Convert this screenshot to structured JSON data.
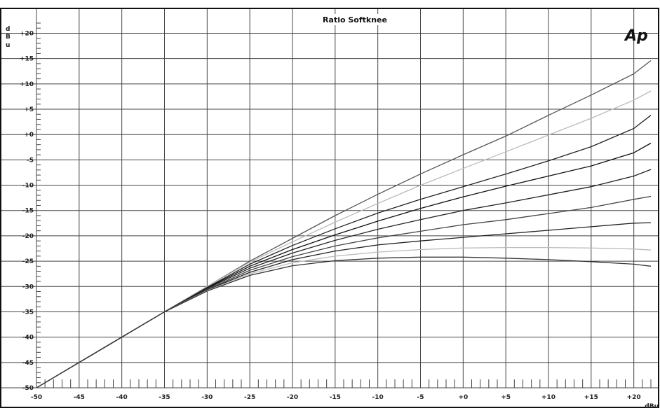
{
  "chart_data": {
    "type": "line",
    "title": "Ratio Softknee",
    "xlabel": "dBu",
    "ylabel": "dBu",
    "xlim": [
      -50,
      22
    ],
    "ylim": [
      -50,
      22
    ],
    "grid": true,
    "logo": "Ap",
    "xticks": [
      {
        "value": -50,
        "label": "-50"
      },
      {
        "value": -45,
        "label": "-45"
      },
      {
        "value": -40,
        "label": "-40"
      },
      {
        "value": -35,
        "label": "-35"
      },
      {
        "value": -30,
        "label": "-30"
      },
      {
        "value": -25,
        "label": "-25"
      },
      {
        "value": -20,
        "label": "-20"
      },
      {
        "value": -15,
        "label": "-15"
      },
      {
        "value": -10,
        "label": "-10"
      },
      {
        "value": -5,
        "label": "-5"
      },
      {
        "value": 0,
        "label": "+0"
      },
      {
        "value": 5,
        "label": "+5"
      },
      {
        "value": 10,
        "label": "+10"
      },
      {
        "value": 15,
        "label": "+15"
      },
      {
        "value": 20,
        "label": "+20"
      }
    ],
    "yticks": [
      {
        "value": 20,
        "label": "+20"
      },
      {
        "value": 15,
        "label": "+15"
      },
      {
        "value": 10,
        "label": "+10"
      },
      {
        "value": 5,
        "label": "+5"
      },
      {
        "value": 0,
        "label": "+0"
      },
      {
        "value": -5,
        "label": "-5"
      },
      {
        "value": -10,
        "label": "-10"
      },
      {
        "value": -15,
        "label": "-15"
      },
      {
        "value": -20,
        "label": "-20"
      },
      {
        "value": -25,
        "label": "-25"
      },
      {
        "value": -30,
        "label": "-30"
      },
      {
        "value": -35,
        "label": "-35"
      },
      {
        "value": -40,
        "label": "-40"
      },
      {
        "value": -45,
        "label": "-45"
      },
      {
        "value": -50,
        "label": "-50"
      }
    ],
    "series": [
      {
        "color": "#555555",
        "x": [
          -50,
          -40,
          -35,
          -30,
          -25,
          -20,
          -15,
          -10,
          -5,
          0,
          5,
          10,
          15,
          20,
          22
        ],
        "y": [
          -50,
          -40,
          -35,
          -30,
          -25,
          -20.5,
          -16,
          -11.8,
          -7.8,
          -4,
          -0.3,
          3.8,
          7.8,
          12,
          14.6
        ]
      },
      {
        "color": "#bbbbbb",
        "x": [
          -50,
          -40,
          -35,
          -30,
          -25,
          -20,
          -15,
          -10,
          -5,
          0,
          5,
          10,
          15,
          20,
          22
        ],
        "y": [
          -50,
          -40,
          -35,
          -30,
          -25.2,
          -21.2,
          -17.3,
          -13.6,
          -10,
          -6.7,
          -3.4,
          -0.1,
          3.2,
          6.8,
          8.6
        ]
      },
      {
        "color": "#222222",
        "x": [
          -50,
          -40,
          -35,
          -30,
          -25,
          -20,
          -15,
          -10,
          -5,
          0,
          5,
          10,
          15,
          20,
          22
        ],
        "y": [
          -50,
          -40,
          -35,
          -30.2,
          -25.6,
          -21.9,
          -18.6,
          -15.5,
          -12.8,
          -10.3,
          -7.8,
          -5.2,
          -2.4,
          1.2,
          3.8
        ]
      },
      {
        "color": "#111111",
        "x": [
          -50,
          -40,
          -35,
          -30,
          -25,
          -20,
          -15,
          -10,
          -5,
          0,
          5,
          10,
          15,
          20,
          22
        ],
        "y": [
          -50,
          -40,
          -35,
          -30.3,
          -26,
          -22.7,
          -19.8,
          -17.1,
          -14.6,
          -12.3,
          -10.2,
          -8.2,
          -6.2,
          -3.6,
          -1.7
        ]
      },
      {
        "color": "#222222",
        "x": [
          -50,
          -40,
          -35,
          -30,
          -25,
          -20,
          -15,
          -10,
          -5,
          0,
          5,
          10,
          15,
          20,
          22
        ],
        "y": [
          -50,
          -40,
          -35,
          -30.4,
          -26.4,
          -23.4,
          -20.9,
          -18.7,
          -16.8,
          -15,
          -13.5,
          -11.9,
          -10.3,
          -8.2,
          -6.9
        ]
      },
      {
        "color": "#444444",
        "x": [
          -50,
          -40,
          -35,
          -30,
          -25,
          -20,
          -15,
          -10,
          -5,
          0,
          5,
          10,
          15,
          20,
          22
        ],
        "y": [
          -50,
          -40,
          -35,
          -30.6,
          -26.8,
          -24.1,
          -22,
          -20.4,
          -19.1,
          -17.8,
          -16.8,
          -15.6,
          -14.4,
          -12.8,
          -12.2
        ]
      },
      {
        "color": "#222222",
        "x": [
          -50,
          -40,
          -35,
          -30,
          -25,
          -20,
          -15,
          -10,
          -5,
          0,
          5,
          10,
          15,
          20,
          22
        ],
        "y": [
          -50,
          -40,
          -35,
          -30.7,
          -27.2,
          -24.7,
          -23,
          -21.8,
          -21,
          -20.3,
          -19.6,
          -18.9,
          -18.2,
          -17.5,
          -17.4
        ]
      },
      {
        "color": "#bbbbbb",
        "x": [
          -50,
          -40,
          -35,
          -30,
          -25,
          -20,
          -15,
          -10,
          -5,
          0,
          5,
          10,
          15,
          20,
          22
        ],
        "y": [
          -50,
          -40,
          -35,
          -30.8,
          -27.5,
          -25.3,
          -24,
          -23.2,
          -22.7,
          -22.4,
          -22.3,
          -22.3,
          -22.4,
          -22.6,
          -22.8
        ]
      },
      {
        "color": "#333333",
        "x": [
          -50,
          -40,
          -35,
          -30,
          -25,
          -20,
          -15,
          -10,
          -5,
          0,
          5,
          10,
          15,
          20,
          22
        ],
        "y": [
          -50,
          -40,
          -35,
          -30.9,
          -27.8,
          -25.9,
          -24.9,
          -24.4,
          -24.2,
          -24.2,
          -24.4,
          -24.7,
          -25.1,
          -25.6,
          -26
        ]
      }
    ]
  }
}
